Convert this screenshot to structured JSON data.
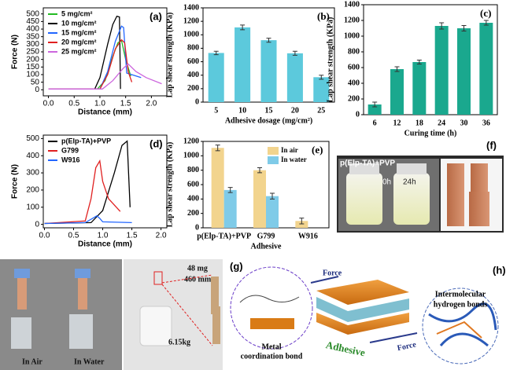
{
  "chart_data": [
    {
      "type": "line",
      "label": "(a)",
      "xlabel": "Distance (mm)",
      "ylabel": "Force (N)",
      "xlim": [
        -0.1,
        2.3
      ],
      "xticks": [
        {
          "value": 0,
          "label": "0.0"
        },
        0.5,
        {
          "value": 1,
          "label": "1.0"
        },
        1.5,
        {
          "value": 2,
          "label": "2.0"
        }
      ],
      "ylim": [
        -40,
        540
      ],
      "yticks": [
        0,
        50,
        100,
        150,
        200,
        250,
        300,
        350,
        400,
        450,
        500
      ],
      "series": [
        {
          "name": "5 mg/cm²",
          "color": "#22bb22",
          "x": [
            0,
            0.95,
            1.1,
            1.25,
            1.35,
            1.42,
            1.5,
            1.6
          ],
          "values": [
            5,
            5,
            60,
            220,
            310,
            325,
            200,
            90
          ]
        },
        {
          "name": "10 mg/cm²",
          "color": "#000000",
          "x": [
            0,
            0.9,
            1.0,
            1.15,
            1.25,
            1.33,
            1.38,
            1.4
          ],
          "values": [
            5,
            5,
            80,
            300,
            430,
            485,
            480,
            5
          ]
        },
        {
          "name": "15 mg/cm²",
          "color": "#2266ff",
          "x": [
            0,
            1.0,
            1.15,
            1.3,
            1.42,
            1.46,
            1.52,
            1.8
          ],
          "values": [
            5,
            5,
            120,
            320,
            420,
            410,
            110,
            80
          ]
        },
        {
          "name": "20 mg/cm²",
          "color": "#e02020",
          "x": [
            0,
            1.0,
            1.15,
            1.3,
            1.42,
            1.48,
            1.55,
            1.62
          ],
          "values": [
            5,
            5,
            100,
            270,
            330,
            310,
            120,
            50
          ]
        },
        {
          "name": "25 mg/cm²",
          "color": "#cc66dd",
          "x": [
            0,
            1.05,
            1.25,
            1.45,
            1.55,
            1.7,
            1.9,
            2.2
          ],
          "values": [
            5,
            5,
            60,
            140,
            170,
            120,
            80,
            40
          ]
        }
      ]
    },
    {
      "type": "bar",
      "label": "(b)",
      "xlabel": "Adhesive dosage (mg/cm²)",
      "ylabel": "Lap shear strength (KPa)",
      "categories": [
        "5",
        "10",
        "15",
        "20",
        "25"
      ],
      "values": [
        730,
        1110,
        920,
        725,
        370
      ],
      "errors": [
        25,
        35,
        30,
        30,
        30
      ],
      "color": "#5cc9dc",
      "ylim": [
        0,
        1400
      ],
      "yticks": [
        0,
        200,
        400,
        600,
        800,
        1000,
        1200,
        1400
      ]
    },
    {
      "type": "bar",
      "label": "(c)",
      "xlabel": "Curing time (h)",
      "ylabel": "Lap shear strength (KPa)",
      "categories": [
        "6",
        "12",
        "18",
        "24",
        "30",
        "36"
      ],
      "values": [
        130,
        580,
        670,
        1130,
        1100,
        1170
      ],
      "errors": [
        30,
        30,
        25,
        40,
        35,
        30
      ],
      "color": "#1aa88e",
      "ylim": [
        0,
        1400
      ],
      "yticks": [
        0,
        200,
        400,
        600,
        800,
        1000,
        1200,
        1400
      ]
    },
    {
      "type": "line",
      "label": "(d)",
      "xlabel": "Distance (mm)",
      "ylabel": "Force (N)",
      "xlim": [
        -0.02,
        2.1
      ],
      "xticks": [
        {
          "value": 0,
          "label": "0.0"
        },
        0.5,
        {
          "value": 1,
          "label": "1.0"
        },
        1.5,
        {
          "value": 2,
          "label": "2.0"
        }
      ],
      "ylim": [
        -20,
        520
      ],
      "yticks": [
        0,
        100,
        200,
        300,
        400,
        500
      ],
      "series": [
        {
          "name": "p(Elp-TA)+PVP",
          "color": "#000000",
          "x": [
            0,
            0.8,
            1.0,
            1.2,
            1.33,
            1.42,
            1.47
          ],
          "values": [
            5,
            10,
            80,
            300,
            460,
            485,
            100
          ]
        },
        {
          "name": "G799",
          "color": "#e02020",
          "x": [
            0,
            0.7,
            0.8,
            0.88,
            0.95,
            1.0,
            1.1,
            1.3
          ],
          "values": [
            5,
            20,
            150,
            330,
            370,
            250,
            150,
            75
          ]
        },
        {
          "name": "W916",
          "color": "#2266ff",
          "x": [
            0,
            0.7,
            0.85,
            0.9,
            0.95,
            1.0,
            1.5
          ],
          "values": [
            5,
            10,
            40,
            50,
            35,
            15,
            10
          ]
        }
      ]
    },
    {
      "type": "grouped-bar",
      "label": "(e)",
      "xlabel": "Adhesive",
      "ylabel": "Lap shear strength (KPa)",
      "categories": [
        "p(Elp-TA)+PVP",
        "G799",
        "W916"
      ],
      "ylim": [
        0,
        1200
      ],
      "yticks": [
        0,
        200,
        400,
        600,
        800,
        1000,
        1200
      ],
      "series": [
        {
          "name": "In air",
          "color": "#f2d48e",
          "values": [
            1110,
            800,
            95
          ],
          "errors": [
            40,
            35,
            40
          ]
        },
        {
          "name": "In water",
          "color": "#7fcbe8",
          "values": [
            525,
            440,
            null
          ],
          "errors": [
            35,
            40,
            null
          ]
        }
      ]
    }
  ],
  "figure": {
    "photo_f": {
      "label": "(f)",
      "tag": "p(Elp-TA)+PVP",
      "time0": "0h",
      "time24": "24h"
    },
    "photo_g": {
      "label": "(g)",
      "in_air": "In Air",
      "in_water": "In Water",
      "mass": "48 mg",
      "area": "460 mm²",
      "weight": "6.15kg"
    },
    "diagram_h": {
      "label": "(h)",
      "force_top": "Force",
      "force_bottom": "Force",
      "adhesive": "Adhesive",
      "hbond": [
        "Intermolecular",
        "hydrogen bonds"
      ],
      "metal": [
        "Metal",
        "coordination bond"
      ]
    }
  }
}
